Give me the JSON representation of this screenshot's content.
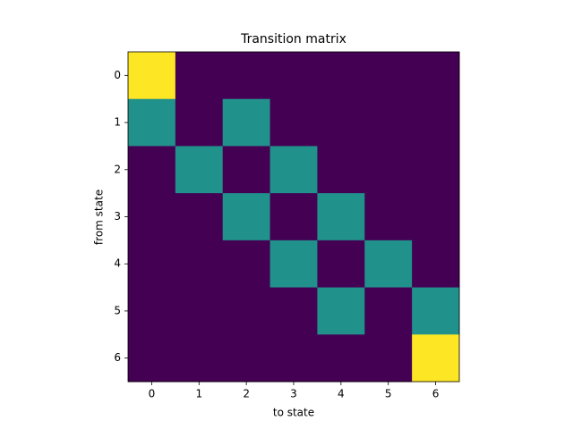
{
  "chart_data": {
    "type": "heatmap",
    "title": "Transition matrix",
    "x_label": "to state",
    "y_label": "from state",
    "xlim": [
      -0.5,
      6.5
    ],
    "ylim": [
      6.5,
      -0.5
    ],
    "xticks": [
      0,
      1,
      2,
      3,
      4,
      5,
      6
    ],
    "yticks": [
      0,
      1,
      2,
      3,
      4,
      5,
      6
    ],
    "colormap": [
      "#440154",
      "#21918c",
      "#fde725"
    ],
    "values": [
      [
        1,
        0,
        0,
        0,
        0,
        0,
        0
      ],
      [
        0.5,
        0,
        0.5,
        0,
        0,
        0,
        0
      ],
      [
        0,
        0.5,
        0,
        0.5,
        0,
        0,
        0
      ],
      [
        0,
        0,
        0.5,
        0,
        0.5,
        0,
        0
      ],
      [
        0,
        0,
        0,
        0.5,
        0,
        0.5,
        0
      ],
      [
        0,
        0,
        0,
        0,
        0.5,
        0,
        0.5
      ],
      [
        0,
        0,
        0,
        0,
        0,
        0,
        1
      ]
    ]
  }
}
